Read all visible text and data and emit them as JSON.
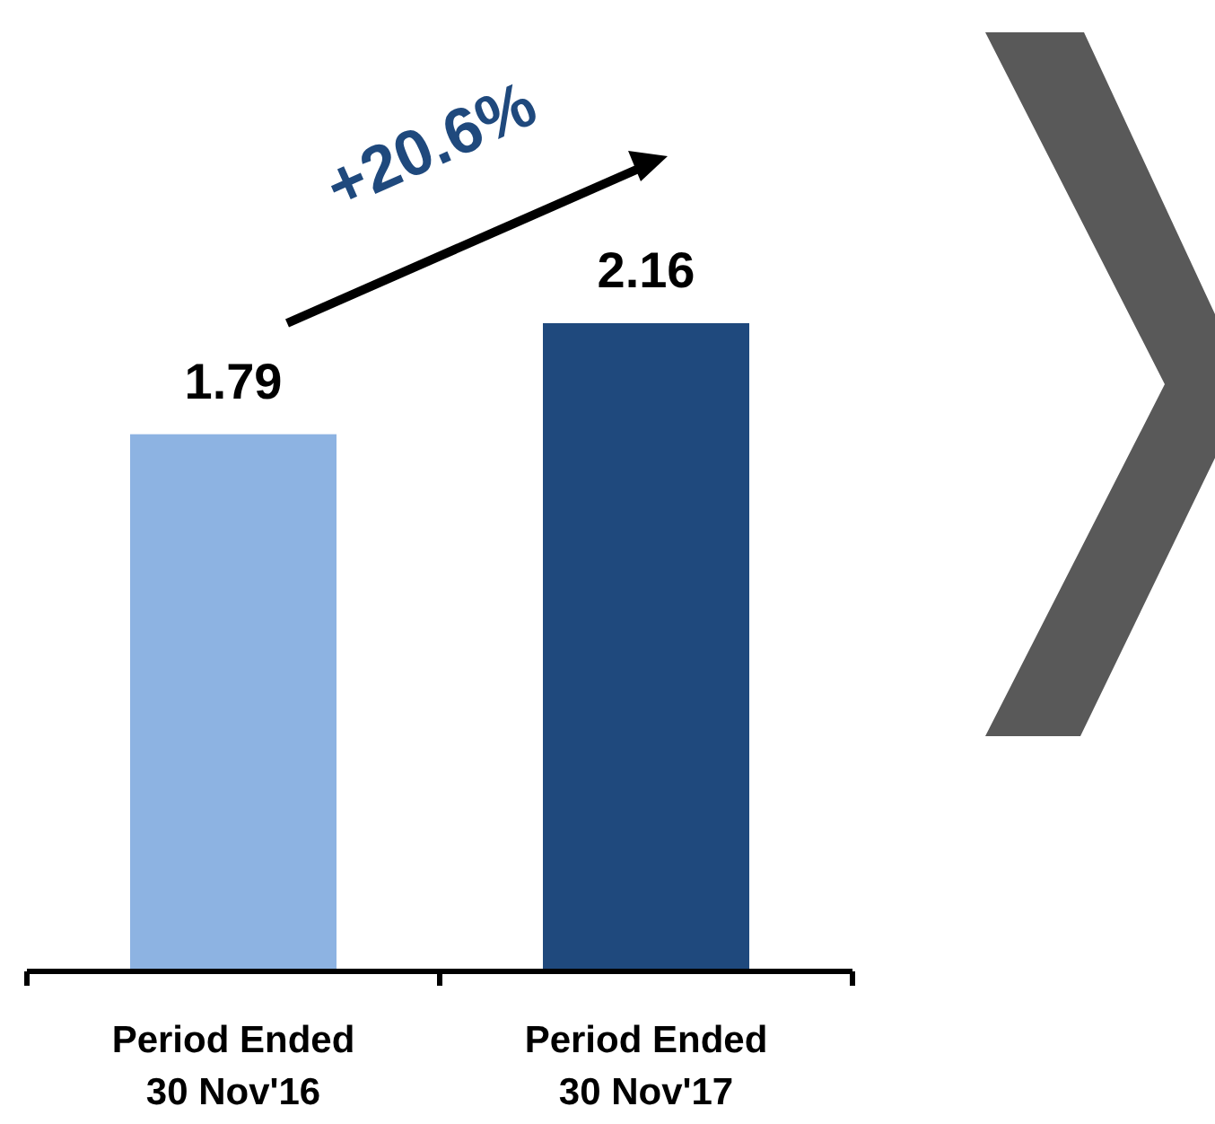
{
  "chart_data": {
    "type": "bar",
    "categories": [
      "Period Ended\n30 Nov'16",
      "Period Ended\n30 Nov'17"
    ],
    "values": [
      1.79,
      2.16
    ],
    "colors": [
      "#8db3e2",
      "#1f497d"
    ],
    "tick_labels": "x",
    "data_labels": true,
    "annotations": [
      "+20.6%"
    ]
  }
}
